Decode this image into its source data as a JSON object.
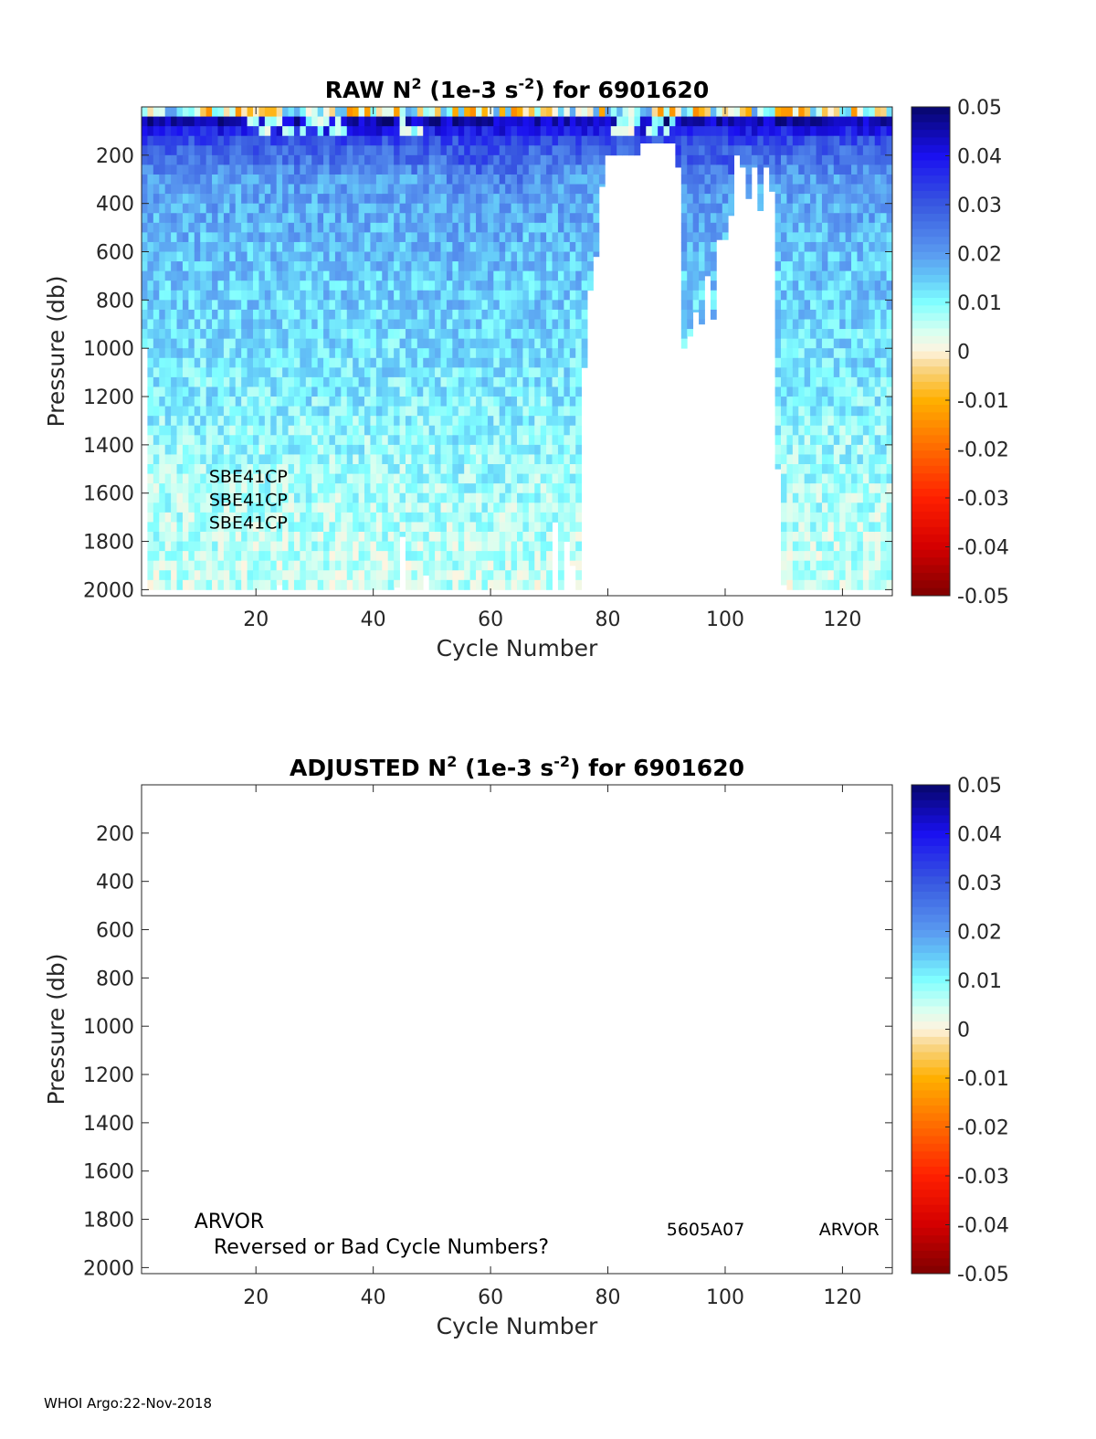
{
  "footer": "WHOI Argo:22-Nov-2018",
  "chart_data": [
    {
      "type": "heatmap",
      "title_parts": [
        "RAW N",
        "2",
        " (1e-3 s",
        "-2",
        ") for 6901620"
      ],
      "xlabel": "Cycle Number",
      "ylabel": "Pressure (db)",
      "xlim": [
        0.5,
        128.5
      ],
      "ylim": [
        0,
        2025
      ],
      "y_reversed": true,
      "xticks": [
        20,
        40,
        60,
        80,
        100,
        120
      ],
      "xtick_labels": [
        "20",
        "40",
        "60",
        "80",
        "100",
        "120"
      ],
      "yticks": [
        200,
        400,
        600,
        800,
        1000,
        1200,
        1400,
        1600,
        1800,
        2000
      ],
      "ytick_labels": [
        "200",
        "400",
        "600",
        "800",
        "1000",
        "1200",
        "1400",
        "1600",
        "1800",
        "2000"
      ],
      "colorbar": {
        "clim": [
          -0.05,
          0.05
        ],
        "ticks": [
          0.05,
          0.04,
          0.03,
          0.02,
          0.01,
          0,
          -0.01,
          -0.02,
          -0.03,
          -0.04,
          -0.05
        ],
        "tick_labels": [
          "0.05",
          "0.04",
          "0.03",
          "0.02",
          "0.01",
          "0",
          "-0.01",
          "-0.02",
          "-0.03",
          "-0.04",
          "-0.05"
        ],
        "colormap_stops": [
          [
            -0.05,
            "#7f0000"
          ],
          [
            -0.04,
            "#d40000"
          ],
          [
            -0.03,
            "#ff2000"
          ],
          [
            -0.02,
            "#ff6a00"
          ],
          [
            -0.01,
            "#ffb000"
          ],
          [
            -0.003,
            "#f8d890"
          ],
          [
            0,
            "#fff4e0"
          ],
          [
            0.004,
            "#d8fff0"
          ],
          [
            0.01,
            "#80ffff"
          ],
          [
            0.015,
            "#64c8f8"
          ],
          [
            0.02,
            "#5a9af0"
          ],
          [
            0.03,
            "#3858e0"
          ],
          [
            0.04,
            "#1a10f0"
          ],
          [
            0.05,
            "#06066a"
          ]
        ]
      },
      "cycles_first": 1,
      "cycles_last": 128,
      "depth_bin_dbar": 40,
      "max_pressure_by_cycle": [
        1000,
        2000,
        2000,
        2000,
        2000,
        2000,
        2000,
        2000,
        2000,
        2000,
        2000,
        2000,
        2000,
        2000,
        2000,
        2000,
        2000,
        2000,
        2000,
        2000,
        2000,
        2000,
        2000,
        1980,
        2000,
        2000,
        2000,
        2000,
        2000,
        2000,
        2000,
        2000,
        2000,
        2000,
        2000,
        2000,
        2000,
        2000,
        2000,
        2000,
        2000,
        2000,
        2000,
        1990,
        1780,
        2000,
        2000,
        2000,
        1940,
        2000,
        2000,
        2000,
        2000,
        2000,
        2000,
        2000,
        2000,
        2000,
        2000,
        2000,
        2000,
        2000,
        2000,
        2000,
        2000,
        2000,
        2000,
        2000,
        2000,
        2000,
        1720,
        2000,
        1800,
        1900,
        2000,
        1080,
        760,
        620,
        330,
        200,
        200,
        200,
        200,
        200,
        200,
        150,
        150,
        150,
        150,
        150,
        150,
        250,
        1000,
        950,
        850,
        900,
        700,
        880,
        550,
        550,
        450,
        200,
        250,
        380,
        250,
        430,
        250,
        350,
        1500,
        1980,
        2000,
        2000,
        2000,
        2000,
        2000,
        2000,
        2000,
        2000,
        2000,
        2000,
        2000,
        2000,
        2000,
        2000,
        2000,
        2000,
        2000,
        2000
      ],
      "mean_profile": {
        "pressure": [
          0,
          20,
          60,
          150,
          300,
          700,
          1200,
          1600,
          2000
        ],
        "n2": [
          0.004,
          0.045,
          0.045,
          0.03,
          0.02,
          0.015,
          0.011,
          0.007,
          0.005
        ]
      },
      "annotations": [
        {
          "text": "SBE41CP",
          "cycle": 12,
          "pressure": 1530
        },
        {
          "text": "SBE41CP",
          "cycle": 12,
          "pressure": 1625
        },
        {
          "text": "SBE41CP",
          "cycle": 12,
          "pressure": 1720
        }
      ]
    },
    {
      "type": "heatmap",
      "title_parts": [
        "ADJUSTED N",
        "2",
        " (1e-3 s",
        "-2",
        ") for 6901620"
      ],
      "xlabel": "Cycle Number",
      "ylabel": "Pressure (db)",
      "xlim": [
        0.5,
        128.5
      ],
      "ylim": [
        0,
        2025
      ],
      "y_reversed": true,
      "xticks": [
        20,
        40,
        60,
        80,
        100,
        120
      ],
      "xtick_labels": [
        "20",
        "40",
        "60",
        "80",
        "100",
        "120"
      ],
      "yticks": [
        200,
        400,
        600,
        800,
        1000,
        1200,
        1400,
        1600,
        1800,
        2000
      ],
      "ytick_labels": [
        "200",
        "400",
        "600",
        "800",
        "1000",
        "1200",
        "1400",
        "1600",
        "1800",
        "2000"
      ],
      "colorbar": {
        "clim": [
          -0.05,
          0.05
        ],
        "ticks": [
          0.05,
          0.04,
          0.03,
          0.02,
          0.01,
          0,
          -0.01,
          -0.02,
          -0.03,
          -0.04,
          -0.05
        ],
        "tick_labels": [
          "0.05",
          "0.04",
          "0.03",
          "0.02",
          "0.01",
          "0",
          "-0.01",
          "-0.02",
          "-0.03",
          "-0.04",
          "-0.05"
        ]
      },
      "values": [],
      "annotations": [
        {
          "text": "ARVOR",
          "cycle": 9.5,
          "pressure": 1810,
          "large": true
        },
        {
          "text": "Reversed or Bad Cycle Numbers?",
          "cycle": 12.8,
          "pressure": 1915,
          "large": true
        },
        {
          "text": "5605A07",
          "cycle": 90,
          "pressure": 1840
        },
        {
          "text": "ARVOR",
          "cycle": 116,
          "pressure": 1840
        }
      ]
    }
  ]
}
